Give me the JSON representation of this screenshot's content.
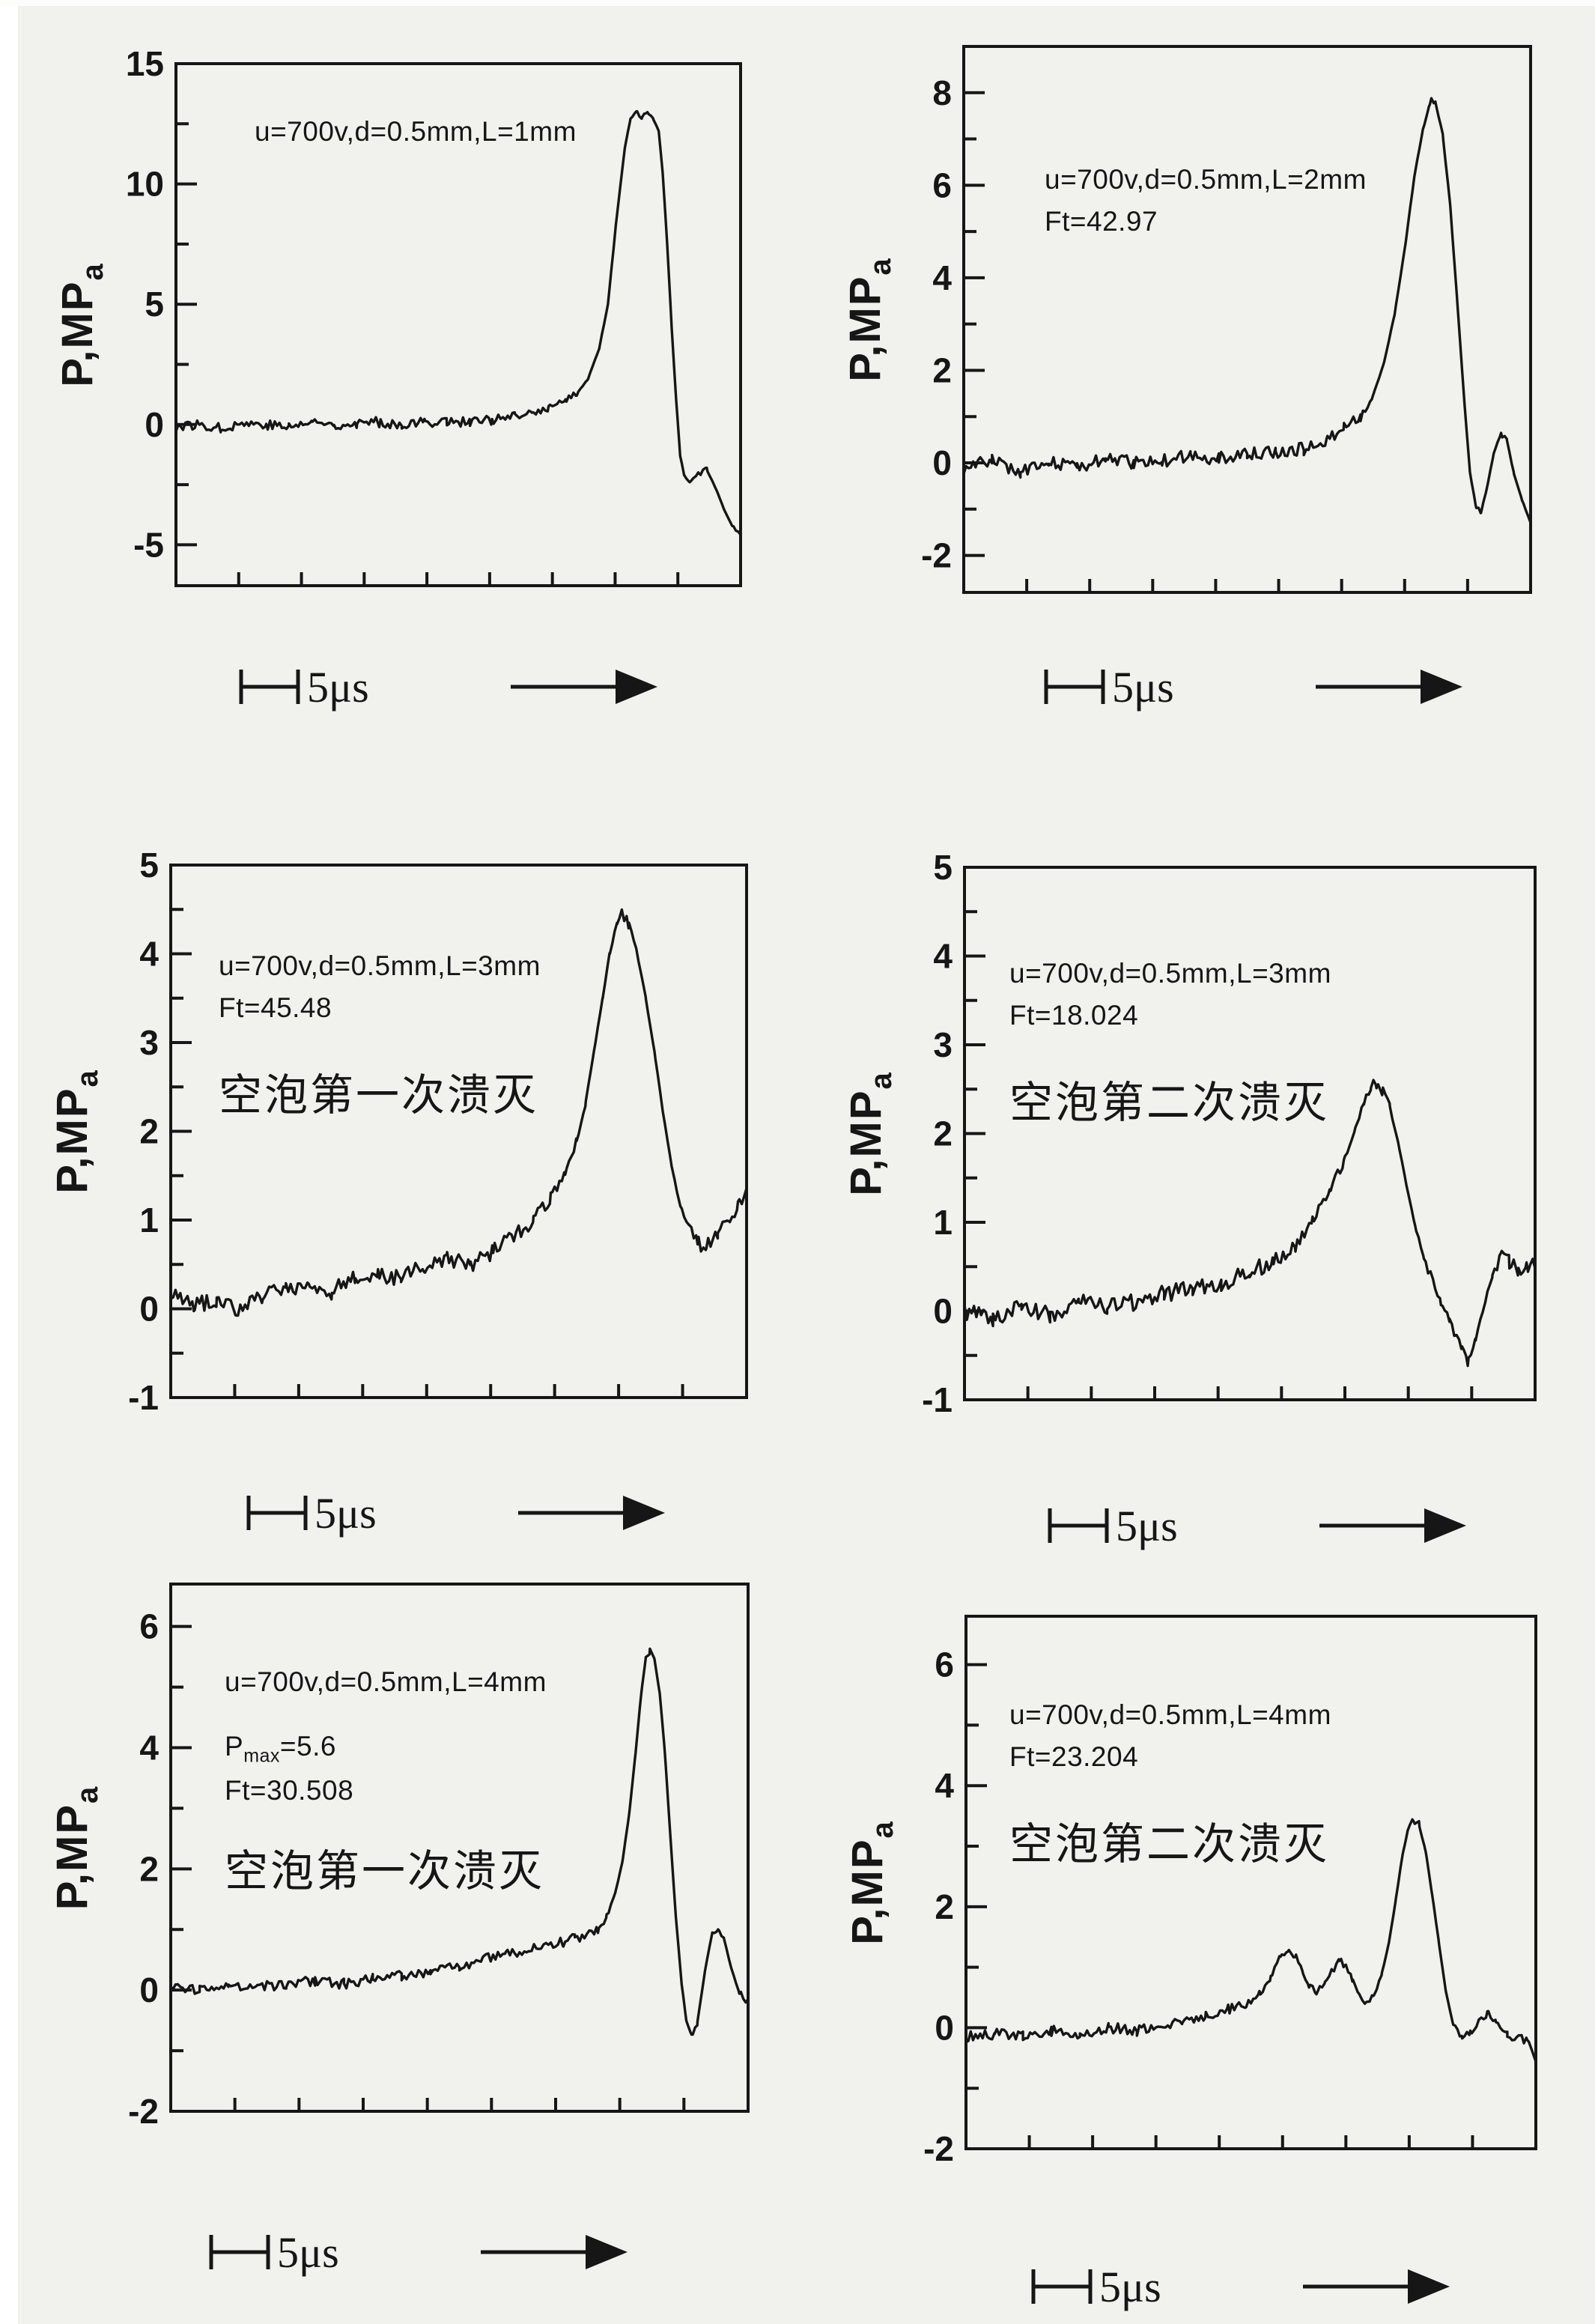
{
  "page": {
    "background": "#f1f1ed",
    "ink": "#161616",
    "paper_edge": "#ffffff"
  },
  "scalebar": {
    "label": "5μs"
  },
  "chart_data": [
    {
      "type": "line",
      "position": "top-left",
      "annotation": "u=700v,d=0.5mm,L=1mm",
      "ylabel": "P,MPa",
      "ylabel_main": "P,MP",
      "ylabel_sub": "a",
      "ylim": [
        -6.7,
        15
      ],
      "yticks_major": [
        15,
        10,
        5,
        0,
        -5
      ],
      "yticks_minor": [
        12.5,
        7.5,
        2.5,
        -2.5
      ],
      "time_scale": "5μs",
      "peak_value": 13,
      "noise": 0.22,
      "x": [
        0,
        0.04,
        0.08,
        0.12,
        0.16,
        0.2,
        0.24,
        0.28,
        0.32,
        0.36,
        0.4,
        0.44,
        0.48,
        0.52,
        0.56,
        0.6,
        0.63,
        0.66,
        0.69,
        0.71,
        0.73,
        0.75,
        0.765,
        0.78,
        0.795,
        0.805,
        0.815,
        0.825,
        0.835,
        0.845,
        0.855,
        0.862,
        0.87,
        0.878,
        0.886,
        0.893,
        0.9,
        0.91,
        0.925,
        0.94,
        0.955,
        0.97,
        0.985,
        1
      ],
      "y": [
        -0.1,
        0,
        -0.15,
        0.05,
        0,
        -0.1,
        0.1,
        0,
        0.05,
        0.1,
        0,
        0.1,
        0.15,
        0.1,
        0.2,
        0.3,
        0.45,
        0.7,
        1.0,
        1.3,
        1.9,
        3.2,
        5.0,
        8.5,
        11.5,
        12.7,
        13.0,
        12.75,
        12.95,
        12.7,
        12.2,
        10.5,
        7.5,
        4.0,
        1.0,
        -1.3,
        -2.1,
        -2.4,
        -2.0,
        -1.9,
        -2.6,
        -3.5,
        -4.2,
        -4.6
      ]
    },
    {
      "type": "line",
      "position": "top-right",
      "annotation": "u=700v,d=0.5mm,L=2mm",
      "ft_label": "Ft=42.97",
      "ylabel": "P,MPa",
      "ylabel_main": "P,MP",
      "ylabel_sub": "a",
      "ylim": [
        -2.8,
        9
      ],
      "yticks_major": [
        8,
        6,
        4,
        2,
        0,
        -2
      ],
      "yticks_minor": [
        7,
        5,
        3,
        1,
        -1
      ],
      "time_scale": "5μs",
      "peak_value": 7.8,
      "noise": 0.15,
      "x": [
        0,
        0.05,
        0.1,
        0.15,
        0.2,
        0.25,
        0.3,
        0.35,
        0.4,
        0.45,
        0.5,
        0.55,
        0.6,
        0.64,
        0.67,
        0.7,
        0.72,
        0.74,
        0.76,
        0.78,
        0.795,
        0.81,
        0.822,
        0.832,
        0.845,
        0.858,
        0.87,
        0.882,
        0.893,
        0.903,
        0.912,
        0.922,
        0.935,
        0.948,
        0.958,
        0.97,
        0.985,
        1
      ],
      "y": [
        -0.1,
        0.05,
        -0.2,
        0.05,
        -0.1,
        0.1,
        0,
        0.05,
        0.15,
        0.1,
        0.2,
        0.2,
        0.3,
        0.5,
        0.75,
        1.0,
        1.4,
        2.1,
        3.2,
        4.8,
        6.2,
        7.2,
        7.75,
        7.8,
        7.1,
        5.6,
        3.6,
        1.5,
        -0.2,
        -0.9,
        -1.1,
        -0.6,
        0.2,
        0.65,
        0.5,
        -0.2,
        -0.8,
        -1.3
      ]
    },
    {
      "type": "line",
      "position": "middle-left",
      "annotation": "u=700v,d=0.5mm,L=3mm",
      "ft_label": "Ft=45.48",
      "label_cn": "空泡第一次溃灭",
      "ylabel": "P,MPa",
      "ylabel_main": "P,MP",
      "ylabel_sub": "a",
      "ylim": [
        -1,
        5
      ],
      "yticks_major": [
        5,
        4,
        3,
        2,
        1,
        0,
        -1
      ],
      "yticks_minor": [
        4.5,
        3.5,
        2.5,
        1.5,
        0.5,
        -0.5
      ],
      "time_scale": "5μs",
      "peak_value": 4.45,
      "noise": 0.1,
      "x": [
        0,
        0.04,
        0.08,
        0.12,
        0.16,
        0.2,
        0.24,
        0.28,
        0.32,
        0.36,
        0.4,
        0.44,
        0.48,
        0.52,
        0.56,
        0.6,
        0.63,
        0.66,
        0.685,
        0.705,
        0.72,
        0.735,
        0.75,
        0.762,
        0.775,
        0.785,
        0.795,
        0.81,
        0.825,
        0.84,
        0.855,
        0.87,
        0.885,
        0.9,
        0.915,
        0.93,
        0.95,
        0.97,
        0.985,
        1
      ],
      "y": [
        0.2,
        0.05,
        0.1,
        0.0,
        0.15,
        0.2,
        0.25,
        0.2,
        0.35,
        0.4,
        0.35,
        0.5,
        0.55,
        0.5,
        0.65,
        0.85,
        1.0,
        1.25,
        1.55,
        1.9,
        2.3,
        2.9,
        3.5,
        4.0,
        4.35,
        4.45,
        4.35,
        4.0,
        3.5,
        2.9,
        2.2,
        1.6,
        1.15,
        0.9,
        0.75,
        0.7,
        0.85,
        1.0,
        1.15,
        1.35
      ]
    },
    {
      "type": "line",
      "position": "middle-right",
      "annotation": "u=700v,d=0.5mm,L=3mm",
      "ft_label": "Ft=18.024",
      "label_cn": "空泡第二次溃灭",
      "ylabel": "P,MPa",
      "ylabel_main": "P,MP",
      "ylabel_sub": "a",
      "ylim": [
        -1,
        5
      ],
      "yticks_major": [
        5,
        4,
        3,
        2,
        1,
        0,
        -1
      ],
      "yticks_minor": [
        4.5,
        3.5,
        2.5,
        1.5,
        0.5,
        -0.5
      ],
      "time_scale": "5μs",
      "peak_value": 2.58,
      "noise": 0.1,
      "x": [
        0,
        0.05,
        0.1,
        0.15,
        0.2,
        0.25,
        0.3,
        0.35,
        0.4,
        0.45,
        0.5,
        0.54,
        0.58,
        0.61,
        0.64,
        0.665,
        0.685,
        0.7,
        0.712,
        0.722,
        0.732,
        0.745,
        0.76,
        0.775,
        0.79,
        0.805,
        0.82,
        0.835,
        0.85,
        0.862,
        0.872,
        0.882,
        0.895,
        0.91,
        0.925,
        0.94,
        0.955,
        0.97,
        0.985,
        1
      ],
      "y": [
        0,
        -0.1,
        0.05,
        -0.05,
        0.1,
        0.05,
        0.1,
        0.2,
        0.25,
        0.3,
        0.45,
        0.55,
        0.75,
        1.0,
        1.35,
        1.7,
        2.05,
        2.35,
        2.5,
        2.58,
        2.5,
        2.3,
        1.9,
        1.4,
        0.95,
        0.6,
        0.35,
        0.1,
        -0.1,
        -0.3,
        -0.45,
        -0.55,
        -0.35,
        0.05,
        0.4,
        0.6,
        0.55,
        0.45,
        0.5,
        0.5
      ]
    },
    {
      "type": "line",
      "position": "bottom-left",
      "annotation": "u=700v,d=0.5mm,L=4mm",
      "pmax_pre": "P",
      "pmax_sub": "max",
      "pmax_post": "=5.6",
      "ft_label": "Ft=30.508",
      "label_cn": "空泡第一次溃灭",
      "ylabel": "P,MPa",
      "ylabel_main": "P,MP",
      "ylabel_sub": "a",
      "ylim": [
        -2,
        6.7
      ],
      "yticks_major": [
        6,
        4,
        2,
        0,
        -2
      ],
      "yticks_minor": [
        5,
        3,
        1,
        -1
      ],
      "time_scale": "5μs",
      "peak_value": 5.6,
      "noise": 0.09,
      "x": [
        0,
        0.05,
        0.1,
        0.15,
        0.2,
        0.25,
        0.3,
        0.35,
        0.4,
        0.45,
        0.5,
        0.54,
        0.58,
        0.62,
        0.65,
        0.68,
        0.7,
        0.72,
        0.74,
        0.755,
        0.77,
        0.782,
        0.794,
        0.805,
        0.815,
        0.823,
        0.83,
        0.838,
        0.847,
        0.856,
        0.865,
        0.875,
        0.885,
        0.893,
        0.902,
        0.912,
        0.925,
        0.938,
        0.948,
        0.958,
        0.97,
        0.985,
        1
      ],
      "y": [
        0.05,
        0,
        0.1,
        0.05,
        0.1,
        0.15,
        0.1,
        0.2,
        0.25,
        0.3,
        0.4,
        0.5,
        0.6,
        0.65,
        0.75,
        0.8,
        0.85,
        0.9,
        1.0,
        1.2,
        1.6,
        2.1,
        2.9,
        3.9,
        4.9,
        5.5,
        5.6,
        5.45,
        4.9,
        3.9,
        2.6,
        1.2,
        0.1,
        -0.5,
        -0.75,
        -0.55,
        0.3,
        0.95,
        1.05,
        0.85,
        0.4,
        -0.05,
        -0.2
      ]
    },
    {
      "type": "line",
      "position": "bottom-right",
      "annotation": "u=700v,d=0.5mm,L=4mm",
      "ft_label": "Ft=23.204",
      "label_cn": "空泡第二次溃灭",
      "ylabel": "P,MPa",
      "ylabel_main": "P,MP",
      "ylabel_sub": "a",
      "ylim": [
        -2,
        6.8
      ],
      "yticks_major": [
        6,
        4,
        2,
        0,
        -2
      ],
      "yticks_minor": [
        5,
        3,
        1,
        -1
      ],
      "time_scale": "5μs",
      "peak_value": 3.45,
      "noise": 0.09,
      "x": [
        0,
        0.05,
        0.1,
        0.15,
        0.2,
        0.25,
        0.3,
        0.34,
        0.38,
        0.42,
        0.46,
        0.49,
        0.515,
        0.535,
        0.552,
        0.565,
        0.578,
        0.59,
        0.602,
        0.615,
        0.63,
        0.643,
        0.655,
        0.665,
        0.678,
        0.69,
        0.702,
        0.715,
        0.73,
        0.742,
        0.754,
        0.765,
        0.775,
        0.785,
        0.795,
        0.807,
        0.818,
        0.83,
        0.842,
        0.855,
        0.87,
        0.885,
        0.9,
        0.915,
        0.93,
        0.95,
        0.97,
        0.985,
        1
      ],
      "y": [
        -0.15,
        -0.1,
        -0.15,
        -0.05,
        -0.1,
        0,
        -0.05,
        0.05,
        0.1,
        0.2,
        0.3,
        0.4,
        0.55,
        0.85,
        1.2,
        1.3,
        1.2,
        0.95,
        0.7,
        0.6,
        0.75,
        0.95,
        1.1,
        1.05,
        0.8,
        0.55,
        0.4,
        0.5,
        0.9,
        1.4,
        2.1,
        2.8,
        3.25,
        3.45,
        3.35,
        2.9,
        2.2,
        1.4,
        0.6,
        0.05,
        -0.15,
        -0.1,
        0.1,
        0.25,
        0.15,
        -0.1,
        -0.18,
        -0.2,
        -0.55
      ]
    }
  ]
}
